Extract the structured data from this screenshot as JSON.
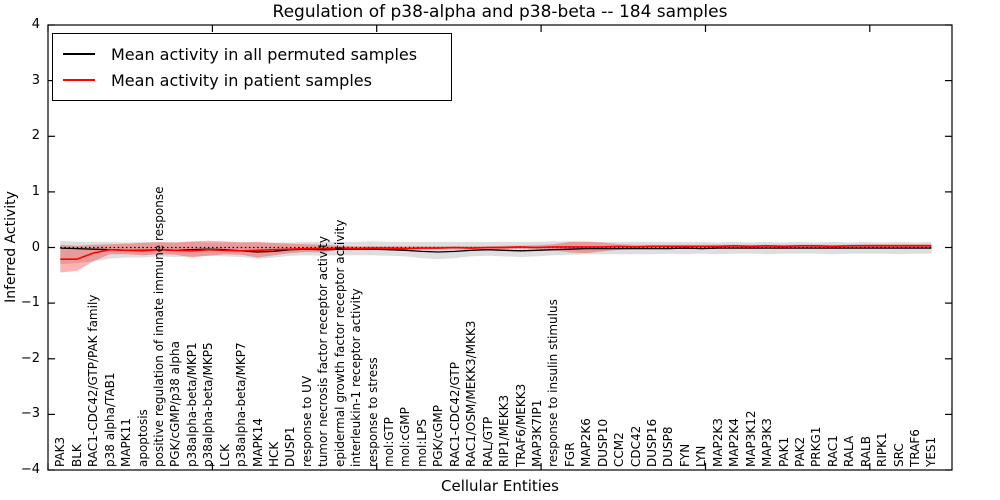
{
  "figure": {
    "background": "#ffffff",
    "accent_red": "#ff0000",
    "line_black": "#000000"
  },
  "legend": {
    "items": [
      {
        "label": "Mean activity in all permuted samples",
        "color": "#000000"
      },
      {
        "label": "Mean activity in patient samples",
        "color": "#ff0000"
      }
    ]
  },
  "chart_data": {
    "type": "line",
    "title": "Regulation of p38-alpha and p38-beta -- 184 samples",
    "xlabel": "Cellular Entities",
    "ylabel": "Inferred Activity",
    "ylim": [
      -4,
      4
    ],
    "yticks": [
      4,
      3,
      2,
      1,
      0,
      -1,
      -2,
      -3,
      -4
    ],
    "xlim": [
      0,
      55
    ],
    "x_major_ticks": [
      0,
      10,
      20,
      30,
      40,
      50
    ],
    "x_offset": 0.75,
    "grid": false,
    "legend_position": "upper left",
    "zero_line": {
      "y": 0,
      "style": "dotted",
      "color": "#000000"
    },
    "categories": [
      "PAK3",
      "BLK",
      "RAC1-CDC42/GTP/PAK family",
      "p38 alpha/TAB1",
      "MAPK11",
      "apoptosis",
      "positive regulation of innate immune response",
      "PGK/cGMP/p38 alpha",
      "p38alpha-beta/MKP1",
      "p38alpha-beta/MKP5",
      "LCK",
      "p38alpha-beta/MKP7",
      "MAPK14",
      "HCK",
      "DUSP1",
      "response to UV",
      "tumor necrosis factor receptor activity",
      "epidermal growth factor receptor activity",
      "interleukin-1 receptor activity",
      "response to stress",
      "mol:GTP",
      "mol:cGMP",
      "mol:LPS",
      "PGK/cGMP",
      "RAC1-CDC42/GTP",
      "RAC1/OSM/MEKK3/MKK3",
      "RAL/GTP",
      "RIP1/MEKK3",
      "TRAF6/MEKK3",
      "MAP3K7IP1",
      "response to insulin stimulus",
      "FGR",
      "MAP2K6",
      "DUSP10",
      "CCM2",
      "CDC42",
      "DUSP16",
      "DUSP8",
      "FYN",
      "LYN",
      "MAP2K3",
      "MAP2K4",
      "MAP3K12",
      "MAP3K3",
      "PAK1",
      "PAK2",
      "PRKG1",
      "RAC1",
      "RALA",
      "RALB",
      "RIPK1",
      "SRC",
      "TRAF6",
      "YES1"
    ],
    "series": [
      {
        "name": "Mean activity in all permuted samples",
        "color": "#000000",
        "width": 1.3,
        "values": [
          -0.01,
          -0.02,
          -0.03,
          -0.04,
          -0.05,
          -0.05,
          -0.04,
          -0.05,
          -0.04,
          -0.03,
          -0.04,
          -0.06,
          -0.08,
          -0.07,
          -0.04,
          -0.03,
          -0.04,
          -0.03,
          -0.03,
          -0.03,
          -0.04,
          -0.05,
          -0.07,
          -0.08,
          -0.07,
          -0.05,
          -0.04,
          -0.05,
          -0.06,
          -0.05,
          -0.04,
          -0.03,
          -0.02,
          -0.02,
          -0.02,
          -0.02,
          -0.02,
          -0.02,
          -0.01,
          -0.02,
          -0.01,
          -0.01,
          -0.01,
          -0.01,
          -0.01,
          -0.01,
          -0.01,
          -0.01,
          -0.01,
          -0.01,
          -0.01,
          -0.01,
          -0.01,
          -0.01
        ],
        "band": {
          "fill": "#000000",
          "opacity": 0.13,
          "lower": [
            -0.3,
            -0.28,
            -0.25,
            -0.2,
            -0.18,
            -0.18,
            -0.16,
            -0.17,
            -0.16,
            -0.15,
            -0.16,
            -0.17,
            -0.2,
            -0.18,
            -0.15,
            -0.14,
            -0.15,
            -0.14,
            -0.14,
            -0.14,
            -0.15,
            -0.16,
            -0.19,
            -0.21,
            -0.19,
            -0.16,
            -0.15,
            -0.16,
            -0.17,
            -0.16,
            -0.14,
            -0.13,
            -0.12,
            -0.12,
            -0.12,
            -0.12,
            -0.12,
            -0.11,
            -0.12,
            -0.11,
            -0.12,
            -0.11,
            -0.11,
            -0.12,
            -0.11,
            -0.11,
            -0.11,
            -0.12,
            -0.11,
            -0.11,
            -0.11,
            -0.12,
            -0.11,
            -0.11
          ],
          "upper": [
            0.12,
            0.1,
            0.1,
            0.1,
            0.09,
            0.1,
            0.09,
            0.09,
            0.1,
            0.09,
            0.09,
            0.1,
            0.09,
            0.09,
            0.09,
            0.1,
            0.1,
            0.1,
            0.1,
            0.11,
            0.1,
            0.1,
            0.1,
            0.1,
            0.1,
            0.1,
            0.1,
            0.1,
            0.1,
            0.1,
            0.11,
            0.11,
            0.11,
            0.1,
            0.1,
            0.1,
            0.1,
            0.1,
            0.1,
            0.1,
            0.09,
            0.1,
            0.09,
            0.1,
            0.09,
            0.1,
            0.09,
            0.1,
            0.09,
            0.1,
            0.09,
            0.1,
            0.09,
            0.1
          ]
        }
      },
      {
        "name": "Mean activity in patient samples",
        "color": "#ff0000",
        "width": 1.6,
        "values": [
          -0.21,
          -0.21,
          -0.1,
          -0.04,
          -0.05,
          -0.06,
          -0.04,
          -0.05,
          -0.06,
          -0.04,
          -0.05,
          -0.06,
          -0.05,
          -0.04,
          -0.03,
          -0.02,
          -0.02,
          -0.01,
          -0.02,
          -0.01,
          -0.01,
          -0.02,
          -0.01,
          -0.01,
          0.0,
          -0.01,
          0.0,
          0.0,
          0.01,
          0.0,
          0.01,
          0.01,
          0.01,
          0.01,
          0.02,
          0.01,
          0.02,
          0.02,
          0.02,
          0.02,
          0.02,
          0.03,
          0.02,
          0.03,
          0.02,
          0.03,
          0.03,
          0.02,
          0.03,
          0.03,
          0.03,
          0.03,
          0.03,
          0.03
        ],
        "band": {
          "fill": "#ff0000",
          "opacity": 0.3,
          "lower": [
            -0.45,
            -0.42,
            -0.25,
            -0.12,
            -0.12,
            -0.14,
            -0.12,
            -0.13,
            -0.18,
            -0.15,
            -0.12,
            -0.13,
            -0.18,
            -0.14,
            -0.1,
            -0.08,
            -0.09,
            -0.04,
            -0.04,
            -0.03,
            -0.03,
            -0.04,
            -0.03,
            -0.03,
            -0.03,
            -0.03,
            -0.03,
            -0.03,
            -0.02,
            -0.03,
            -0.05,
            -0.09,
            -0.1,
            -0.07,
            -0.04,
            -0.02,
            -0.01,
            -0.01,
            0.0,
            -0.01,
            0.0,
            0.0,
            0.0,
            0.0,
            0.0,
            0.0,
            0.0,
            0.0,
            0.0,
            0.0,
            0.0,
            0.0,
            0.0,
            0.0
          ],
          "upper": [
            0.05,
            0.03,
            0.05,
            0.06,
            0.07,
            0.08,
            0.1,
            0.09,
            0.11,
            0.12,
            0.11,
            0.09,
            0.1,
            0.08,
            0.07,
            0.06,
            0.05,
            0.03,
            0.02,
            0.02,
            0.02,
            0.02,
            0.02,
            0.02,
            0.02,
            0.02,
            0.02,
            0.03,
            0.03,
            0.04,
            0.06,
            0.1,
            0.1,
            0.09,
            0.06,
            0.05,
            0.05,
            0.05,
            0.05,
            0.05,
            0.05,
            0.05,
            0.05,
            0.05,
            0.05,
            0.05,
            0.05,
            0.05,
            0.05,
            0.06,
            0.06,
            0.06,
            0.06,
            0.06
          ]
        }
      }
    ]
  }
}
